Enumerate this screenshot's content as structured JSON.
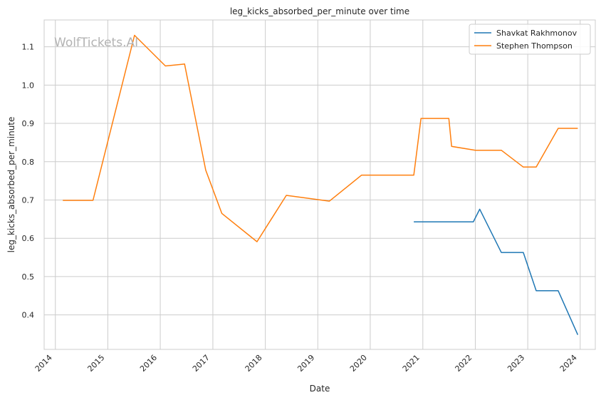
{
  "chart_data": {
    "type": "line",
    "title": "leg_kicks_absorbed_per_minute over time",
    "xlabel": "Date",
    "ylabel": "leg_kicks_absorbed_per_minute",
    "watermark": "WolfTickets.AI",
    "x_ticks": [
      "2014",
      "2015",
      "2016",
      "2017",
      "2018",
      "2019",
      "2020",
      "2021",
      "2022",
      "2023",
      "2024"
    ],
    "y_ticks": [
      "0.4",
      "0.5",
      "0.6",
      "0.7",
      "0.8",
      "0.9",
      "1.0",
      "1.1"
    ],
    "xlim": [
      "2013-10-15",
      "2024-04-15"
    ],
    "ylim": [
      0.31,
      1.17
    ],
    "grid": true,
    "legend_position": "top-right",
    "series": [
      {
        "name": "Shavkat Rakhmonov",
        "color": "#1f77b4",
        "points": [
          {
            "x": "2020-10-30",
            "y": 0.643
          },
          {
            "x": "2021-12-18",
            "y": 0.643
          },
          {
            "x": "2022-02-01",
            "y": 0.676
          },
          {
            "x": "2022-07-01",
            "y": 0.563
          },
          {
            "x": "2022-12-01",
            "y": 0.563
          },
          {
            "x": "2023-03-01",
            "y": 0.463
          },
          {
            "x": "2023-08-01",
            "y": 0.463
          },
          {
            "x": "2023-12-15",
            "y": 0.348
          }
        ]
      },
      {
        "name": "Stephen Thompson",
        "color": "#ff7f0e",
        "points": [
          {
            "x": "2014-02-22",
            "y": 0.699
          },
          {
            "x": "2014-09-20",
            "y": 0.699
          },
          {
            "x": "2015-07-06",
            "y": 1.13
          },
          {
            "x": "2016-02-06",
            "y": 1.05
          },
          {
            "x": "2016-06-18",
            "y": 1.055
          },
          {
            "x": "2016-11-12",
            "y": 0.778
          },
          {
            "x": "2017-03-04",
            "y": 0.665
          },
          {
            "x": "2017-11-04",
            "y": 0.591
          },
          {
            "x": "2018-05-27",
            "y": 0.712
          },
          {
            "x": "2019-03-23",
            "y": 0.697
          },
          {
            "x": "2019-11-02",
            "y": 0.765
          },
          {
            "x": "2020-10-30",
            "y": 0.765
          },
          {
            "x": "2020-12-19",
            "y": 0.913
          },
          {
            "x": "2021-07-01",
            "y": 0.913
          },
          {
            "x": "2021-07-20",
            "y": 0.84
          },
          {
            "x": "2022-01-01",
            "y": 0.83
          },
          {
            "x": "2022-07-01",
            "y": 0.83
          },
          {
            "x": "2022-12-01",
            "y": 0.786
          },
          {
            "x": "2023-03-01",
            "y": 0.786
          },
          {
            "x": "2023-08-01",
            "y": 0.887
          },
          {
            "x": "2023-12-15",
            "y": 0.887
          }
        ]
      }
    ]
  }
}
